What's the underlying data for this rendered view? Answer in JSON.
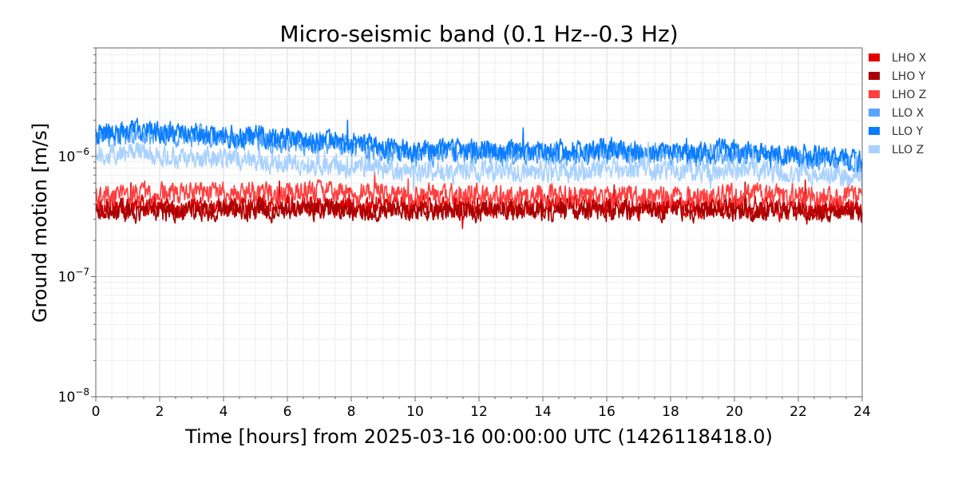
{
  "chart_data": {
    "type": "line",
    "title": "Micro-seismic band (0.1 Hz--0.3 Hz)",
    "xlabel": "Time [hours] from 2025-03-16 00:00:00 UTC (1426118418.0)",
    "ylabel": "Ground motion [m/s]",
    "x_ticks": [
      "0",
      "2",
      "4",
      "6",
      "8",
      "10",
      "12",
      "14",
      "16",
      "18",
      "20",
      "22",
      "24"
    ],
    "x_tick_values": [
      0,
      2,
      4,
      6,
      8,
      10,
      12,
      14,
      16,
      18,
      20,
      22,
      24
    ],
    "y_ticks": [
      {
        "base": "10",
        "exp": "−8",
        "value": 1e-08
      },
      {
        "base": "10",
        "exp": "−7",
        "value": 1e-07
      },
      {
        "base": "10",
        "exp": "−6",
        "value": 1e-06
      }
    ],
    "xlim": [
      0,
      24
    ],
    "ylim": [
      1e-08,
      8e-06
    ],
    "yscale": "log",
    "grid": true,
    "legend_position": "outside-right",
    "x": [
      0,
      1,
      2,
      3,
      4,
      5,
      6,
      7,
      8,
      9,
      10,
      11,
      12,
      13,
      14,
      15,
      16,
      17,
      18,
      19,
      20,
      21,
      22,
      23,
      24
    ],
    "series": [
      {
        "name": "LHO X",
        "color": "#e00000",
        "values": [
          3.9e-07,
          3.8e-07,
          3.9e-07,
          3.7e-07,
          3.8e-07,
          3.9e-07,
          4e-07,
          3.8e-07,
          3.7e-07,
          3.9e-07,
          3.8e-07,
          3.9e-07,
          3.8e-07,
          3.7e-07,
          3.8e-07,
          3.9e-07,
          3.8e-07,
          3.7e-07,
          3.8e-07,
          3.7e-07,
          3.8e-07,
          3.7e-07,
          3.6e-07,
          3.7e-07,
          3.6e-07
        ]
      },
      {
        "name": "LHO Y",
        "color": "#a80000",
        "values": [
          3.6e-07,
          3.5e-07,
          3.6e-07,
          3.5e-07,
          3.6e-07,
          3.5e-07,
          3.6e-07,
          3.6e-07,
          3.5e-07,
          3.6e-07,
          3.5e-07,
          3.6e-07,
          3.5e-07,
          3.6e-07,
          3.5e-07,
          3.6e-07,
          3.5e-07,
          3.6e-07,
          3.5e-07,
          3.6e-07,
          3.5e-07,
          3.5e-07,
          3.4e-07,
          3.5e-07,
          3.4e-07
        ]
      },
      {
        "name": "LHO Z",
        "color": "#ff4040",
        "values": [
          4.7e-07,
          4.8e-07,
          5e-07,
          5.1e-07,
          5e-07,
          4.9e-07,
          5e-07,
          5.1e-07,
          4.8e-07,
          4.9e-07,
          4.8e-07,
          4.9e-07,
          4.8e-07,
          4.7e-07,
          4.8e-07,
          4.7e-07,
          4.8e-07,
          4.7e-07,
          4.6e-07,
          4.7e-07,
          4.7e-07,
          4.8e-07,
          4.6e-07,
          4.6e-07,
          4.7e-07
        ]
      },
      {
        "name": "LLO X",
        "color": "#55a6ff",
        "values": [
          1.45e-06,
          1.55e-06,
          1.5e-06,
          1.48e-06,
          1.4e-06,
          1.35e-06,
          1.3e-06,
          1.28e-06,
          1.2e-06,
          1.1e-06,
          1.05e-06,
          1.05e-06,
          1.08e-06,
          1.02e-06,
          1.05e-06,
          1.03e-06,
          1.1e-06,
          1.08e-06,
          1.04e-06,
          1.02e-06,
          1.05e-06,
          1.02e-06,
          9.8e-07,
          9.5e-07,
          8.5e-07
        ]
      },
      {
        "name": "LLO Y",
        "color": "#0a7cff",
        "values": [
          1.55e-06,
          1.65e-06,
          1.62e-06,
          1.58e-06,
          1.5e-06,
          1.45e-06,
          1.4e-06,
          1.38e-06,
          1.3e-06,
          1.2e-06,
          1.12e-06,
          1.1e-06,
          1.15e-06,
          1.1e-06,
          1.12e-06,
          1.1e-06,
          1.18e-06,
          1.14e-06,
          1.1e-06,
          1.08e-06,
          1.12e-06,
          1.08e-06,
          1.02e-06,
          1e-06,
          9e-07
        ]
      },
      {
        "name": "LLO Z",
        "color": "#a8d1ff",
        "values": [
          1e-06,
          1.05e-06,
          1e-06,
          9.6e-07,
          9.5e-07,
          9e-07,
          8.8e-07,
          8.6e-07,
          8.2e-07,
          7.8e-07,
          7.5e-07,
          7.4e-07,
          7.8e-07,
          7.5e-07,
          7.6e-07,
          7.5e-07,
          8e-07,
          7.8e-07,
          7.6e-07,
          7.4e-07,
          7.7e-07,
          7.4e-07,
          7.2e-07,
          7e-07,
          6.2e-07
        ]
      }
    ]
  }
}
